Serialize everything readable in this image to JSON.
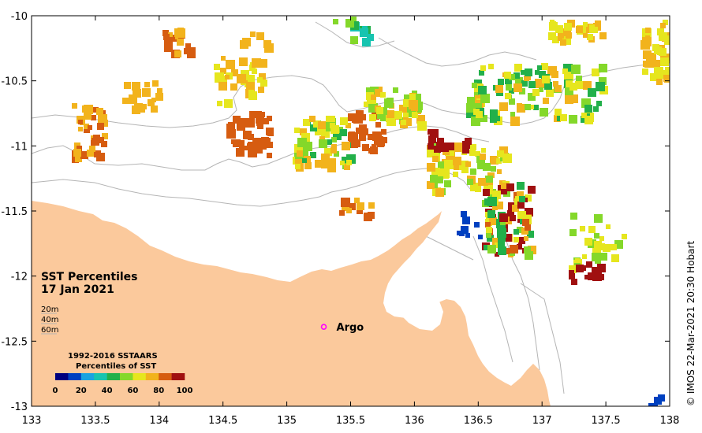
{
  "map": {
    "title_line1": "SST Percentiles",
    "title_line2": "17 Jan 2021",
    "lon_ticks": [
      "133",
      "133.5",
      "134",
      "134.5",
      "135",
      "135.5",
      "136",
      "136.5",
      "137",
      "137.5",
      "138"
    ],
    "lat_ticks": [
      "-10",
      "-10.5",
      "-11",
      "-11.5",
      "-12",
      "-12.5",
      "-13"
    ],
    "lon_range": [
      133,
      138
    ],
    "lat_range": [
      -13,
      -10
    ],
    "depth_labels": [
      "20m",
      "40m",
      "60m"
    ],
    "argo": {
      "label": "Argo",
      "lon": 135.29,
      "lat": -12.39
    },
    "credit": "© IMOS 22-Mar-2021 20:30 Hobart",
    "colors": {
      "land": "#fbc99c",
      "contour": "#b5b5b5",
      "argo": "#ff00ff",
      "frame": "#000000"
    }
  },
  "legend": {
    "title_line1": "1992-2016 SSTAARS",
    "title_line2": "Percentiles of SST",
    "ticks": [
      "0",
      "20",
      "40",
      "60",
      "80",
      "100"
    ],
    "colors": [
      "#00007f",
      "#0040c0",
      "#1aa3e0",
      "#17c4b0",
      "#22b04a",
      "#84d82a",
      "#e6e61e",
      "#f2b31c",
      "#d65c10",
      "#a01010"
    ]
  }
}
